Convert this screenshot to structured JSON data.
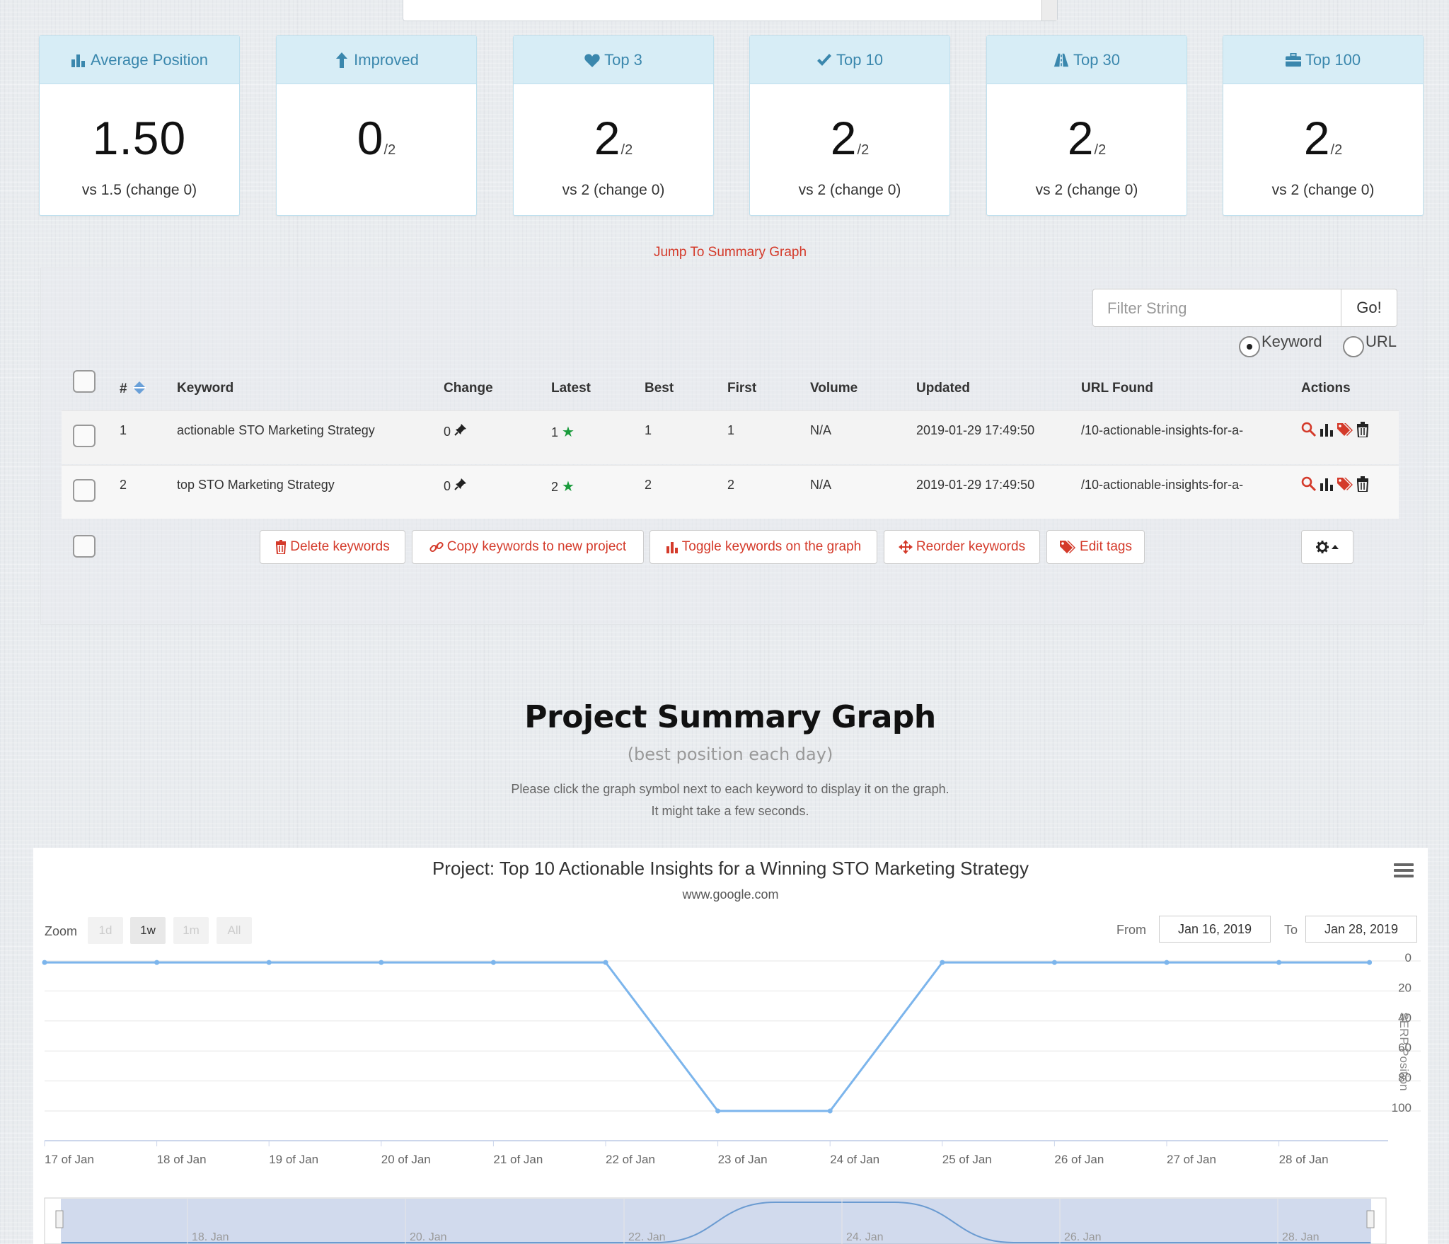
{
  "stats": [
    {
      "icon": "bar-chart-icon",
      "title": "Average Position",
      "value": "1.50",
      "total": "",
      "foot": "vs 1.5 (change 0)"
    },
    {
      "icon": "arrow-up-icon",
      "title": "Improved",
      "value": "0",
      "total": "/2",
      "foot": ""
    },
    {
      "icon": "heart-icon",
      "title": "Top 3",
      "value": "2",
      "total": "/2",
      "foot": "vs 2 (change 0)"
    },
    {
      "icon": "check-icon",
      "title": "Top 10",
      "value": "2",
      "total": "/2",
      "foot": "vs 2 (change 0)"
    },
    {
      "icon": "road-icon",
      "title": "Top 30",
      "value": "2",
      "total": "/2",
      "foot": "vs 2 (change 0)"
    },
    {
      "icon": "briefcase-icon",
      "title": "Top 100",
      "value": "2",
      "total": "/2",
      "foot": "vs 2 (change 0)"
    }
  ],
  "jump_link": "Jump To Summary Graph",
  "filter": {
    "placeholder": "Filter String",
    "go": "Go!",
    "radio_keyword": "Keyword",
    "radio_url": "URL",
    "selected": "Keyword"
  },
  "table": {
    "headers": {
      "num": "#",
      "keyword": "Keyword",
      "change": "Change",
      "latest": "Latest",
      "best": "Best",
      "first": "First",
      "volume": "Volume",
      "updated": "Updated",
      "url": "URL Found",
      "actions": "Actions"
    },
    "rows": [
      {
        "num": "1",
        "keyword": "actionable STO Marketing Strategy",
        "change": "0",
        "latest": "1",
        "best": "1",
        "first": "1",
        "volume": "N/A",
        "updated": "2019-01-29 17:49:50",
        "url": "/10-actionable-insights-for-a-"
      },
      {
        "num": "2",
        "keyword": "top STO Marketing Strategy",
        "change": "0",
        "latest": "2",
        "best": "2",
        "first": "2",
        "volume": "N/A",
        "updated": "2019-01-29 17:49:50",
        "url": "/10-actionable-insights-for-a-"
      }
    ]
  },
  "buttons": {
    "delete": "Delete keywords",
    "copy": "Copy keywords to new project",
    "toggle": "Toggle keywords on the graph",
    "reorder": "Reorder keywords",
    "edit_tags": "Edit tags"
  },
  "summary": {
    "title": "Project Summary Graph",
    "subtitle": "(best position each day)",
    "note1": "Please click the graph symbol next to each keyword to display it on the graph.",
    "note2": "It might take a few seconds."
  },
  "chart": {
    "title": "Project: Top 10 Actionable Insights for a Winning STO Marketing Strategy",
    "subtitle": "www.google.com",
    "zoom_label": "Zoom",
    "zoom_buttons": [
      "1d",
      "1w",
      "1m",
      "All"
    ],
    "zoom_active": "1w",
    "from_label": "From",
    "from_value": "Jan 16, 2019",
    "to_label": "To",
    "to_value": "Jan 28, 2019",
    "y_axis_title": "SERP Position",
    "navigator_labels": [
      "18. Jan",
      "20. Jan",
      "22. Jan",
      "24. Jan",
      "26. Jan",
      "28. Jan"
    ]
  },
  "chart_data": {
    "type": "line",
    "title": "Project: Top 10 Actionable Insights for a Winning STO Marketing Strategy",
    "subtitle": "www.google.com",
    "xlabel": "",
    "ylabel": "SERP Position",
    "y_reversed": true,
    "ylim": [
      0,
      100
    ],
    "yticks": [
      0,
      20,
      40,
      60,
      80,
      100
    ],
    "categories": [
      "17 of Jan",
      "18 of Jan",
      "19 of Jan",
      "20 of Jan",
      "21 of Jan",
      "22 of Jan",
      "23 of Jan",
      "24 of Jan",
      "25 of Jan",
      "26 of Jan",
      "27 of Jan",
      "28 of Jan"
    ],
    "series": [
      {
        "values": [
          1,
          1,
          1,
          1,
          1,
          1,
          100,
          100,
          1,
          1,
          1,
          1
        ],
        "color": "#7cb5ec"
      }
    ],
    "grid": true,
    "legend": "none"
  }
}
